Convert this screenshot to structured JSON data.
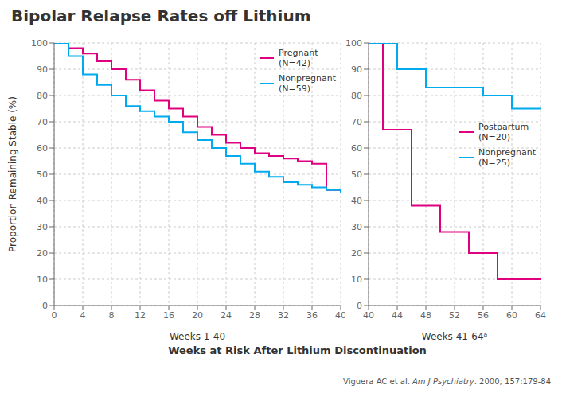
{
  "chart_data": [
    {
      "type": "line",
      "title": "Bipolar Relapse Rates off Lithium",
      "x_label": "Weeks 1-40",
      "y_label": "Proportion Remaining Stable (%)",
      "line_style": "step",
      "grid": true,
      "legend": "upper right",
      "xlim": [
        0,
        40
      ],
      "xticks": [
        0,
        4,
        8,
        12,
        16,
        20,
        24,
        28,
        32,
        36,
        40
      ],
      "ylim": [
        0,
        100
      ],
      "yticks": [
        0,
        10,
        20,
        30,
        40,
        50,
        60,
        70,
        80,
        90,
        100
      ],
      "annotations": [
        {
          "text": "Weeks at Risk After Lithium Discontinuation"
        },
        {
          "text": "Viguera AC et al. "
        },
        {
          "text": "Am J Psychiatry",
          "font_style": "italic"
        },
        {
          "text": ". 2000; 157:179-84"
        }
      ],
      "series": [
        {
          "name": "Pregnant\n(N=42)",
          "color": "#e0007f",
          "x": [
            0,
            2,
            4,
            6,
            8,
            10,
            12,
            14,
            16,
            18,
            20,
            22,
            24,
            26,
            28,
            30,
            32,
            34,
            36,
            38,
            40
          ],
          "values": [
            100,
            98,
            96,
            93,
            90,
            86,
            82,
            78,
            75,
            72,
            68,
            65,
            62,
            60,
            58,
            57,
            56,
            55,
            54,
            44,
            43
          ]
        },
        {
          "name": "Nonpregnant\n(N=59)",
          "color": "#00aaee",
          "x": [
            0,
            2,
            4,
            6,
            8,
            10,
            12,
            14,
            16,
            18,
            20,
            22,
            24,
            26,
            28,
            30,
            32,
            34,
            36,
            38,
            40
          ],
          "values": [
            100,
            95,
            88,
            84,
            80,
            76,
            74,
            72,
            70,
            66,
            63,
            60,
            57,
            54,
            51,
            49,
            47,
            46,
            45,
            44,
            43
          ]
        }
      ]
    },
    {
      "type": "line",
      "x_label": "Weeks 41-64ᵃ",
      "line_style": "step",
      "grid": true,
      "legend": "center right",
      "xlim": [
        40,
        64
      ],
      "xticks": [
        40,
        44,
        48,
        52,
        56,
        60,
        64
      ],
      "ylim": [
        0,
        100
      ],
      "yticks": [
        0,
        10,
        20,
        30,
        40,
        50,
        60,
        70,
        80,
        90,
        100
      ],
      "series": [
        {
          "name": "Postpartum\n(N=20)",
          "color": "#e0007f",
          "x": [
            40,
            41,
            42,
            44,
            46,
            48,
            50,
            52,
            54,
            56,
            58,
            60,
            62,
            64
          ],
          "values": [
            100,
            100,
            67,
            67,
            38,
            38,
            28,
            28,
            20,
            20,
            10,
            10,
            10,
            10
          ]
        },
        {
          "name": "Nonpregnant\n(N=25)",
          "color": "#00aaee",
          "x": [
            40,
            41,
            44,
            46,
            48,
            52,
            56,
            58,
            60,
            64
          ],
          "values": [
            100,
            100,
            90,
            90,
            83,
            83,
            80,
            80,
            75,
            75
          ]
        }
      ]
    }
  ]
}
